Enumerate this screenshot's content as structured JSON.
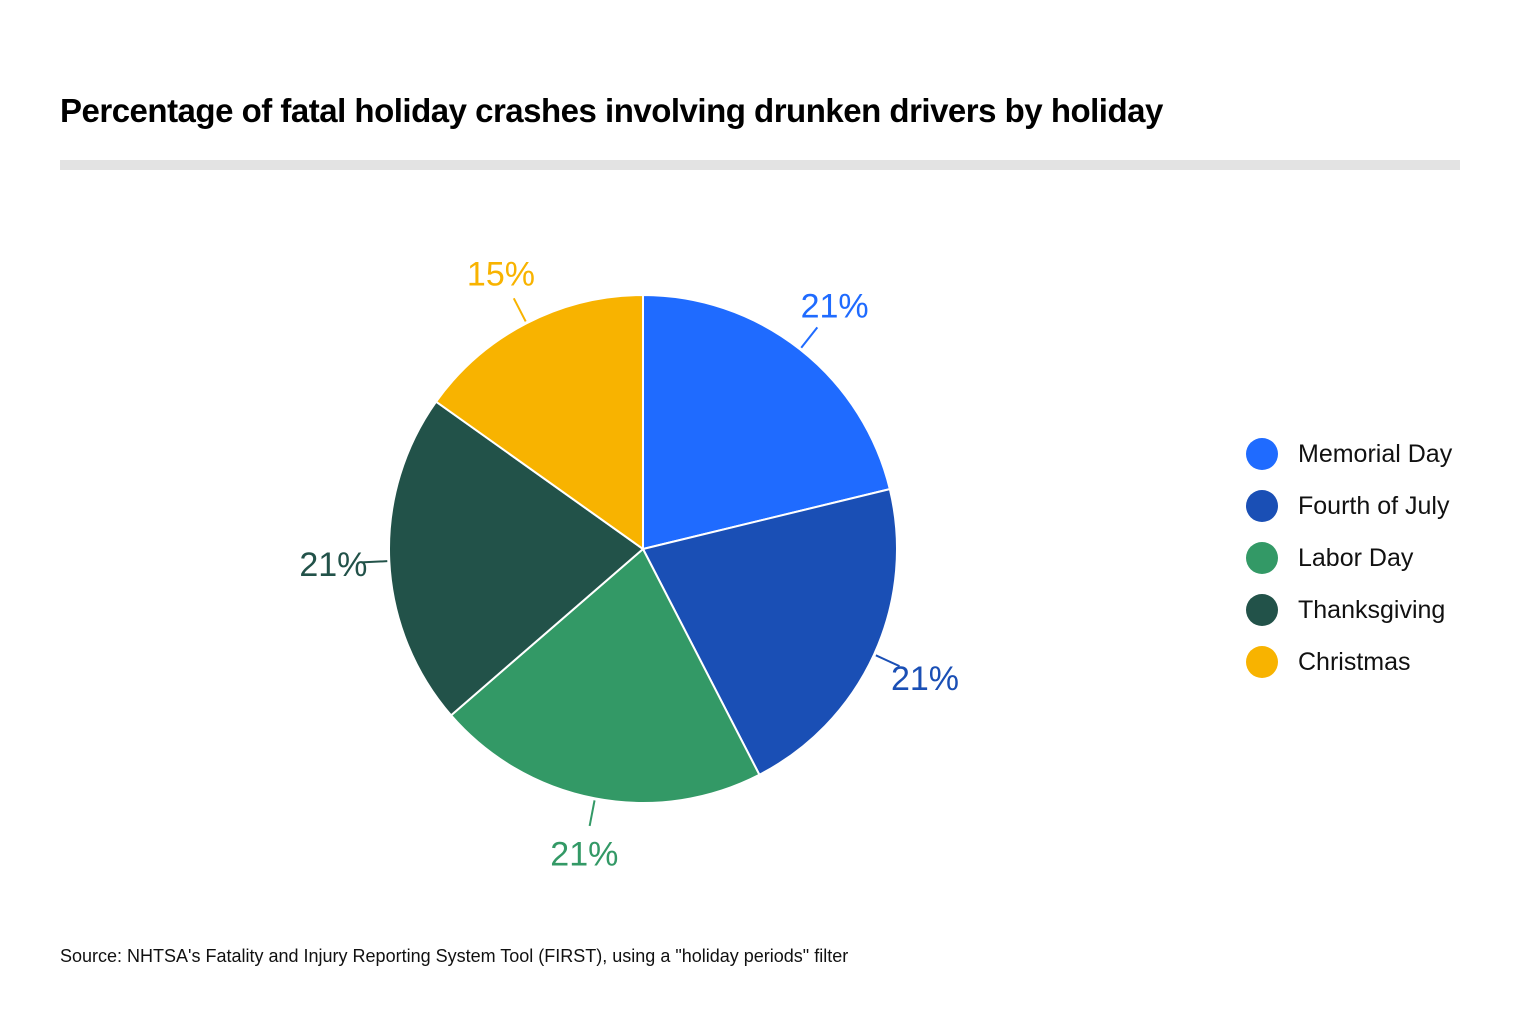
{
  "chart_data": {
    "type": "pie",
    "title": "Percentage of fatal holiday crashes involving drunken drivers by holiday",
    "slices": [
      {
        "label": "Memorial Day",
        "value": 21,
        "display": "21%",
        "color": "#1f6bff"
      },
      {
        "label": "Fourth of July",
        "value": 21,
        "display": "21%",
        "color": "#1a4fb5"
      },
      {
        "label": "Labor Day",
        "value": 21,
        "display": "21%",
        "color": "#339966"
      },
      {
        "label": "Thanksgiving",
        "value": 21,
        "display": "21%",
        "color": "#225249"
      },
      {
        "label": "Christmas",
        "value": 15,
        "display": "15%",
        "color": "#f8b300"
      }
    ],
    "legend_position": "right",
    "source": "Source: NHTSA's Fatality and Injury Reporting System Tool (FIRST), using a \"holiday periods\" filter"
  }
}
